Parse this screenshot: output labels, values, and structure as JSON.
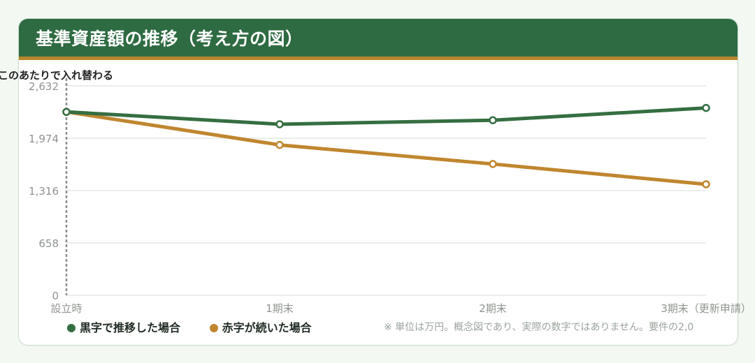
{
  "header": {
    "title": "基準資産額の推移（考え方の図）"
  },
  "annotation": {
    "crossover_note": "ここのあたりで入れ替わる"
  },
  "footnote": "※ 単位は万円。概念図であり、実際の数字ではありません。要件の2,0",
  "colors": {
    "header_bg": "#2e6b42",
    "header_border": "#b8852b",
    "profit_series": "#356e42",
    "loss_series": "#c0862f",
    "grid": "#e3e8e4",
    "axis_text": "#8f948f"
  },
  "chart_data": {
    "type": "line",
    "title": "基準資産額の推移（考え方の図）",
    "xlabel": "",
    "ylabel": "",
    "categories": [
      "設立時",
      "1期末",
      "2期末",
      "3期末（更新申請）"
    ],
    "yticks": [
      0,
      658,
      1316,
      1974,
      2632
    ],
    "ytick_labels": [
      "0",
      "658",
      "1,316",
      "1,974",
      "2,632"
    ],
    "ylim": [
      0,
      2632
    ],
    "grid": true,
    "legend_position": "bottom-left",
    "series": [
      {
        "name": "黒字で推移した場合",
        "color": "#356e42",
        "values": [
          2305,
          2150,
          2200,
          2355
        ]
      },
      {
        "name": "赤字が続いた場合",
        "color": "#c0862f",
        "values": [
          2305,
          1890,
          1650,
          1395
        ]
      }
    ]
  }
}
